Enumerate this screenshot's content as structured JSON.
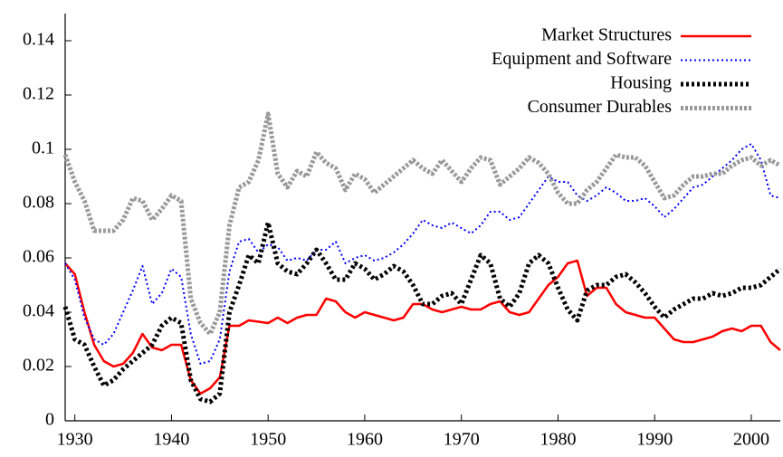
{
  "chart_data": {
    "type": "line",
    "x": [
      1929,
      1930,
      1931,
      1932,
      1933,
      1934,
      1935,
      1936,
      1937,
      1938,
      1939,
      1940,
      1941,
      1942,
      1943,
      1944,
      1945,
      1946,
      1947,
      1948,
      1949,
      1950,
      1951,
      1952,
      1953,
      1954,
      1955,
      1956,
      1957,
      1958,
      1959,
      1960,
      1961,
      1962,
      1963,
      1964,
      1965,
      1966,
      1967,
      1968,
      1969,
      1970,
      1971,
      1972,
      1973,
      1974,
      1975,
      1976,
      1977,
      1978,
      1979,
      1980,
      1981,
      1982,
      1983,
      1984,
      1985,
      1986,
      1987,
      1988,
      1989,
      1990,
      1991,
      1992,
      1993,
      1994,
      1995,
      1996,
      1997,
      1998,
      1999,
      2000,
      2001,
      2002,
      2003
    ],
    "series": [
      {
        "name": "Market Structures",
        "color": "#ff0000",
        "values": [
          0.058,
          0.054,
          0.04,
          0.028,
          0.022,
          0.02,
          0.021,
          0.025,
          0.032,
          0.027,
          0.026,
          0.028,
          0.028,
          0.015,
          0.01,
          0.012,
          0.016,
          0.035,
          0.035,
          0.037,
          0.0365,
          0.036,
          0.038,
          0.036,
          0.038,
          0.039,
          0.039,
          0.045,
          0.044,
          0.04,
          0.038,
          0.04,
          0.039,
          0.038,
          0.037,
          0.038,
          0.043,
          0.043,
          0.041,
          0.04,
          0.041,
          0.042,
          0.041,
          0.041,
          0.043,
          0.044,
          0.04,
          0.039,
          0.04,
          0.045,
          0.05,
          0.053,
          0.058,
          0.059,
          0.046,
          0.049,
          0.049,
          0.043,
          0.04,
          0.039,
          0.038,
          0.038,
          0.034,
          0.03,
          0.029,
          0.029,
          0.03,
          0.031,
          0.033,
          0.034,
          0.033,
          0.035,
          0.035,
          0.029,
          0.026
        ]
      },
      {
        "name": "Equipment and Software",
        "color": "#0000ff",
        "values": [
          0.058,
          0.052,
          0.038,
          0.03,
          0.028,
          0.032,
          0.04,
          0.048,
          0.057,
          0.043,
          0.047,
          0.056,
          0.053,
          0.032,
          0.021,
          0.022,
          0.03,
          0.055,
          0.066,
          0.067,
          0.062,
          0.065,
          0.064,
          0.059,
          0.06,
          0.059,
          0.063,
          0.063,
          0.066,
          0.058,
          0.06,
          0.061,
          0.059,
          0.06,
          0.062,
          0.065,
          0.069,
          0.074,
          0.072,
          0.071,
          0.073,
          0.071,
          0.069,
          0.072,
          0.077,
          0.077,
          0.074,
          0.075,
          0.08,
          0.085,
          0.09,
          0.088,
          0.088,
          0.083,
          0.081,
          0.083,
          0.086,
          0.084,
          0.081,
          0.081,
          0.082,
          0.079,
          0.075,
          0.078,
          0.082,
          0.086,
          0.087,
          0.09,
          0.093,
          0.096,
          0.1,
          0.102,
          0.096,
          0.083,
          0.082
        ]
      },
      {
        "name": "Housing",
        "color": "#000000",
        "values": [
          0.042,
          0.03,
          0.028,
          0.02,
          0.013,
          0.015,
          0.019,
          0.022,
          0.025,
          0.028,
          0.035,
          0.038,
          0.036,
          0.015,
          0.008,
          0.007,
          0.01,
          0.04,
          0.05,
          0.061,
          0.058,
          0.073,
          0.058,
          0.055,
          0.054,
          0.058,
          0.063,
          0.058,
          0.052,
          0.052,
          0.058,
          0.056,
          0.052,
          0.054,
          0.057,
          0.055,
          0.05,
          0.043,
          0.043,
          0.046,
          0.047,
          0.043,
          0.052,
          0.061,
          0.058,
          0.045,
          0.042,
          0.047,
          0.058,
          0.061,
          0.058,
          0.049,
          0.041,
          0.037,
          0.048,
          0.05,
          0.05,
          0.053,
          0.054,
          0.051,
          0.047,
          0.042,
          0.038,
          0.041,
          0.043,
          0.045,
          0.045,
          0.047,
          0.046,
          0.047,
          0.049,
          0.049,
          0.05,
          0.053,
          0.056
        ]
      },
      {
        "name": "Consumer Durables",
        "color": "#999999",
        "values": [
          0.098,
          0.088,
          0.081,
          0.07,
          0.07,
          0.07,
          0.074,
          0.082,
          0.081,
          0.074,
          0.078,
          0.083,
          0.081,
          0.045,
          0.036,
          0.032,
          0.04,
          0.072,
          0.086,
          0.088,
          0.096,
          0.113,
          0.091,
          0.086,
          0.092,
          0.09,
          0.099,
          0.095,
          0.093,
          0.085,
          0.091,
          0.089,
          0.084,
          0.087,
          0.09,
          0.093,
          0.096,
          0.093,
          0.091,
          0.096,
          0.092,
          0.088,
          0.093,
          0.097,
          0.096,
          0.087,
          0.09,
          0.093,
          0.097,
          0.095,
          0.091,
          0.084,
          0.08,
          0.08,
          0.085,
          0.088,
          0.093,
          0.098,
          0.097,
          0.097,
          0.094,
          0.088,
          0.082,
          0.083,
          0.087,
          0.09,
          0.09,
          0.091,
          0.091,
          0.094,
          0.096,
          0.097,
          0.094,
          0.096,
          0.094
        ]
      }
    ],
    "xlim": [
      1929,
      2003
    ],
    "xticks": [
      1930,
      1940,
      1950,
      1960,
      1970,
      1980,
      1990,
      2000
    ],
    "ylim": [
      0,
      0.15
    ],
    "yticks": [
      0,
      0.02,
      0.04,
      0.06,
      0.08,
      0.1,
      0.12,
      0.14
    ],
    "legend": "top-right"
  }
}
